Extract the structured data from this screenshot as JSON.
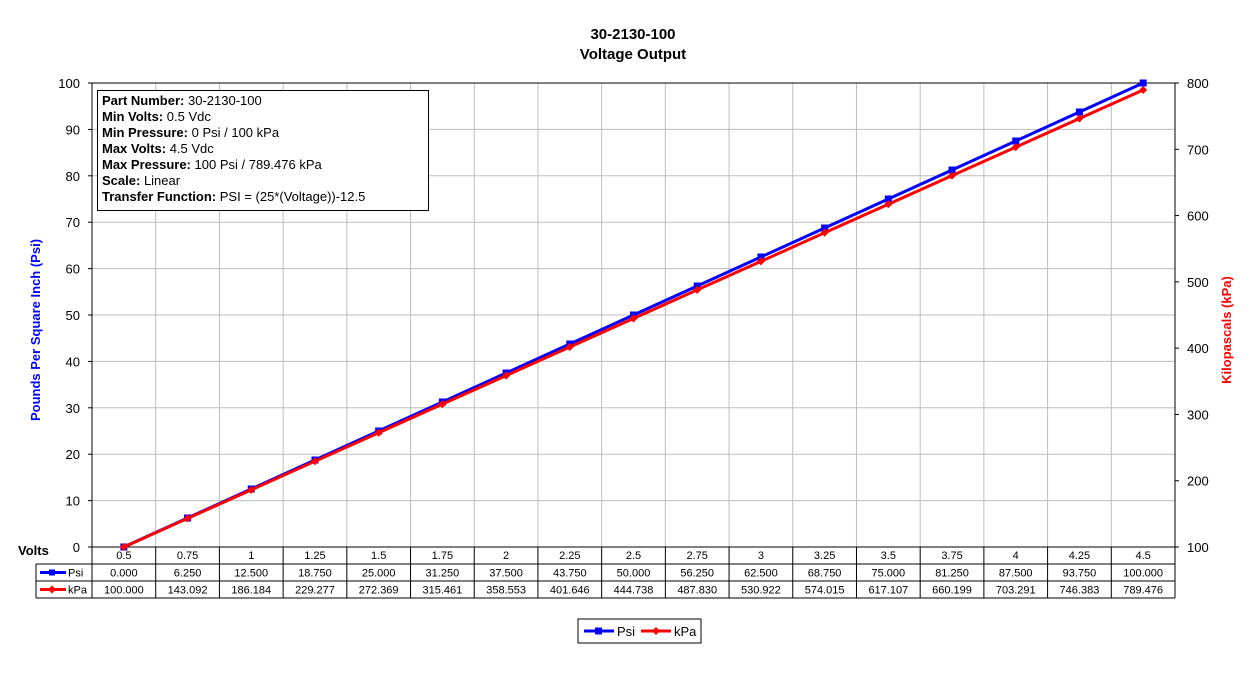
{
  "chart_data": {
    "type": "line",
    "title": "30-2130-100",
    "subtitle": "Voltage Output",
    "xlabel": "Volts",
    "ylabel": "Pounds Per Square Inch (Psi)",
    "y2label": "Kilopascals (kPa)",
    "categories": [
      "0.5",
      "0.75",
      "1",
      "1.25",
      "1.5",
      "1.75",
      "2",
      "2.25",
      "2.5",
      "2.75",
      "3",
      "3.25",
      "3.5",
      "3.75",
      "4",
      "4.25",
      "4.5"
    ],
    "ylim": [
      0,
      100
    ],
    "y2lim": [
      100,
      800
    ],
    "yticks": [
      "0",
      "10",
      "20",
      "30",
      "40",
      "50",
      "60",
      "70",
      "80",
      "90",
      "100"
    ],
    "y2ticks": [
      "100",
      "200",
      "300",
      "400",
      "500",
      "600",
      "700",
      "800"
    ],
    "grid": true,
    "legend_position": "bottom-center",
    "series": [
      {
        "name": "Psi",
        "axis": "left",
        "color": "#0000ff",
        "values": [
          0.0,
          6.25,
          12.5,
          18.75,
          25.0,
          31.25,
          37.5,
          43.75,
          50.0,
          56.25,
          62.5,
          68.75,
          75.0,
          81.25,
          87.5,
          93.75,
          100.0
        ],
        "labels": [
          "0.000",
          "6.250",
          "12.500",
          "18.750",
          "25.000",
          "31.250",
          "37.500",
          "43.750",
          "50.000",
          "56.250",
          "62.500",
          "68.750",
          "75.000",
          "81.250",
          "87.500",
          "93.750",
          "100.000"
        ]
      },
      {
        "name": "kPa",
        "axis": "right",
        "color": "#ff0000",
        "values": [
          100.0,
          143.092,
          186.184,
          229.277,
          272.369,
          315.461,
          358.553,
          401.646,
          444.738,
          487.83,
          530.922,
          574.015,
          617.107,
          660.199,
          703.291,
          746.383,
          789.476
        ],
        "labels": [
          "100.000",
          "143.092",
          "186.184",
          "229.277",
          "272.369",
          "315.461",
          "358.553",
          "401.646",
          "444.738",
          "487.830",
          "530.922",
          "574.015",
          "617.107",
          "660.199",
          "703.291",
          "746.383",
          "789.476"
        ]
      }
    ]
  },
  "info": {
    "rows": [
      {
        "key": "Part Number:",
        "value": "30-2130-100"
      },
      {
        "key": "Min Volts:",
        "value": "0.5 Vdc"
      },
      {
        "key": "Min Pressure:",
        "value": "0 Psi / 100 kPa"
      },
      {
        "key": "Max Volts:",
        "value": "4.5 Vdc"
      },
      {
        "key": "Max Pressure:",
        "value": "100 Psi / 789.476 kPa"
      },
      {
        "key": "Scale:",
        "value": "Linear"
      },
      {
        "key": "Transfer Function:",
        "value": "PSI = (25*(Voltage))-12.5"
      }
    ]
  }
}
